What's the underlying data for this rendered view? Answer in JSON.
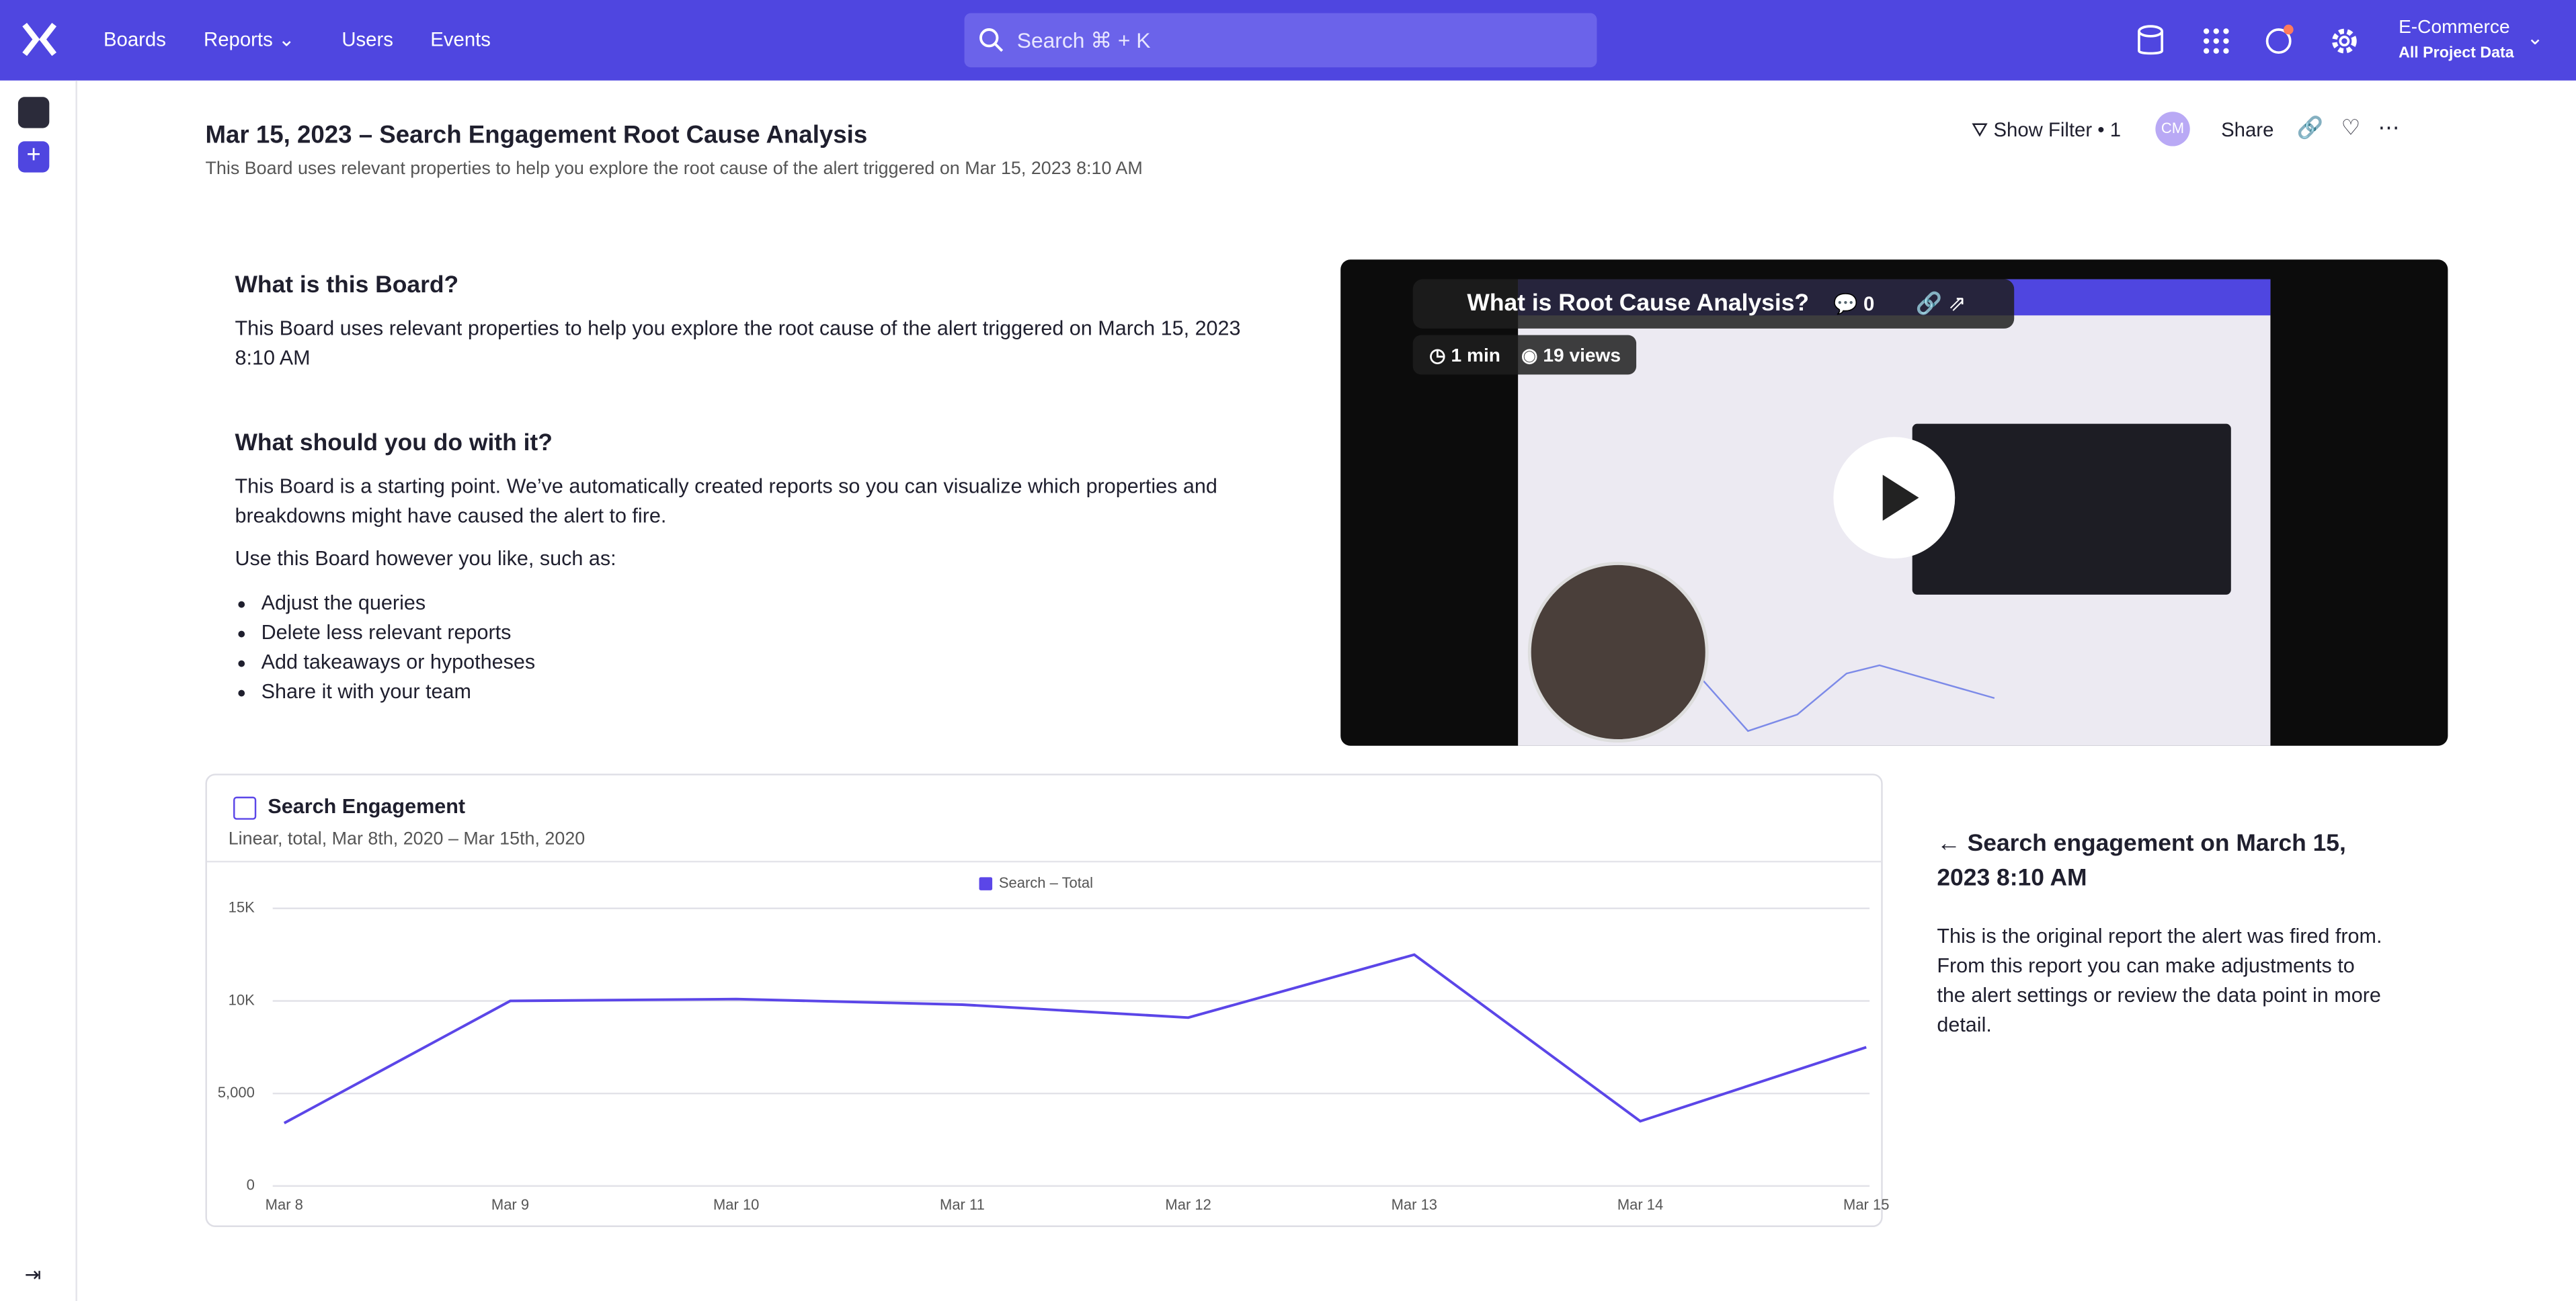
{
  "nav": {
    "items": [
      "Boards",
      "Reports",
      "Users",
      "Events"
    ],
    "search": "Search ⌘ + K",
    "project": "E-Commerce",
    "project_sub": "All Project Data"
  },
  "header": {
    "title": "Mar 15, 2023 – Search Engagement Root Cause Analysis",
    "subtitle": "This Board uses relevant properties to help you explore the root cause of the alert triggered on Mar 15, 2023 8:10 AM",
    "filter": "Show Filter • 1",
    "avatar": "CM",
    "share": "Share"
  },
  "intro": {
    "heading1": "What is this Board?",
    "text1": "This Board uses relevant properties to help you explore the root cause of the alert triggered on March 15, 2023 8:10 AM",
    "heading2": "What should you do with it?",
    "text2": "This Board is a starting point. We’ve automatically created reports so you can visualize which properties and breakdowns might have caused the alert to fire.",
    "text3": "Use this Board however you like, such as:",
    "bullets": [
      "Adjust the queries",
      "Delete less relevant reports",
      "Add takeaways or hypotheses",
      "Share it with your team"
    ]
  },
  "video": {
    "title": "What is Root Cause Analysis?",
    "comments": "0",
    "duration": "1 min",
    "views": "19 views"
  },
  "chart_data": {
    "type": "line",
    "title": "Search Engagement",
    "subtitle": "Linear, total, Mar 8th, 2020 – Mar 15th, 2020",
    "categories": [
      "Mar 8",
      "Mar 9",
      "Mar 10",
      "Mar 11",
      "Mar 12",
      "Mar 13",
      "Mar 14",
      "Mar 15"
    ],
    "series": [
      {
        "name": "Search – Total",
        "color": "#5b46e8",
        "values": [
          3400,
          10000,
          10100,
          9800,
          9100,
          12500,
          3500,
          7500
        ]
      }
    ],
    "ylim": [
      0,
      15000
    ],
    "yticks": [
      0,
      {
        "value": 5000,
        "label": "5,000"
      },
      {
        "value": 10000,
        "label": "10K"
      },
      {
        "value": 15000,
        "label": "15K"
      }
    ],
    "grid": true
  },
  "note": {
    "title": "← Search engagement on March 15, 2023 8:10 AM",
    "text": "This is the original report the alert was fired from. From this report you can make adjustments to the alert settings or review the data point in more detail."
  }
}
